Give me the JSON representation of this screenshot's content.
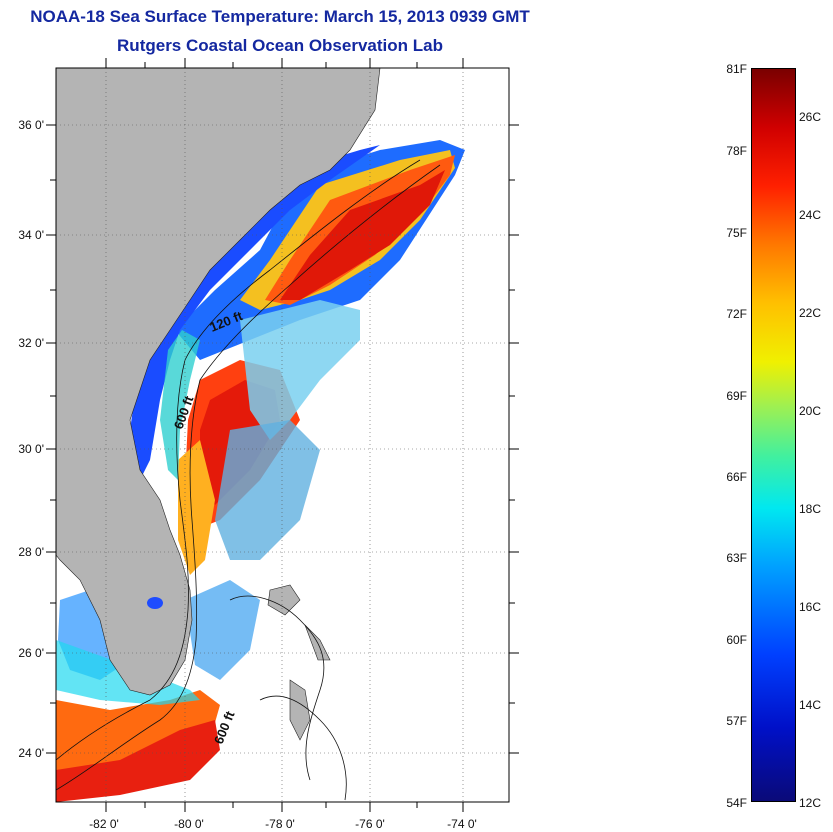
{
  "title": {
    "line1": "NOAA-18 Sea Surface Temperature:  March 15, 2013 0939 GMT",
    "line2": "Rutgers Coastal Ocean Observation Lab"
  },
  "map": {
    "lat_ticks": [
      "36 0'",
      "34 0'",
      "32 0'",
      "30 0'",
      "28 0'",
      "26 0'",
      "24 0'"
    ],
    "lon_ticks": [
      "-82 0'",
      "-80 0'",
      "-78 0'",
      "-76 0'",
      "-74 0'"
    ],
    "contour_labels": {
      "c120": "120 ft",
      "c600a": "600 ft",
      "c600b": "600 ft"
    },
    "land_color": "#b4b4b4"
  },
  "colorbar": {
    "fahrenheit": [
      "81F",
      "78F",
      "75F",
      "72F",
      "69F",
      "66F",
      "63F",
      "60F",
      "57F",
      "54F"
    ],
    "celsius": [
      "26C",
      "24C",
      "22C",
      "20C",
      "18C",
      "16C",
      "14C",
      "12C"
    ]
  }
}
